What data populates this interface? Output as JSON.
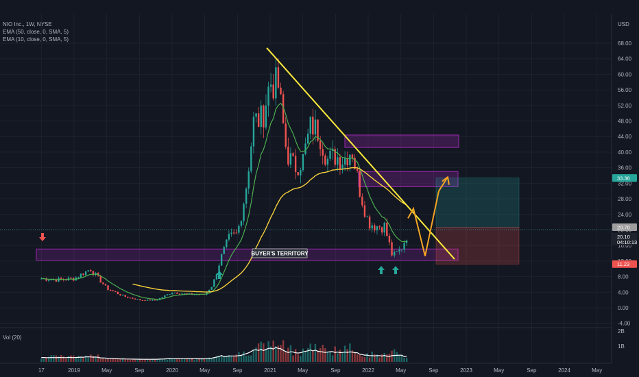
{
  "legend": {
    "symbol": "NIO Inc., 1W, NYSE",
    "ema1": "EMA (50, close, 0, SMA, 5)",
    "ema2": "EMA (10, close, 0, SMA, 5)"
  },
  "volume_label": "Vol (20)",
  "colors": {
    "background": "#131722",
    "trendline": "#ffeb3b",
    "zone": "#9c27b0",
    "arrow_up": "#26a69a",
    "arrow_down": "#ef5350",
    "projection": "#f5a623",
    "ema_slow": "#f5d03b",
    "ema_fast": "#4caf50",
    "profit": "#26a69a",
    "loss": "#ef5350"
  },
  "chart_data": {
    "type": "candlestick",
    "currency": "USD",
    "y_ticks": [
      -4,
      0,
      4,
      8,
      12,
      16,
      20,
      24,
      28,
      32,
      36,
      40,
      44,
      48,
      52,
      56,
      60,
      64,
      68
    ],
    "y_tick_labels": [
      "-4.00",
      "0.00",
      "4.00",
      "8.00",
      "12.00",
      "16.00",
      "20.00",
      "24.00",
      "28.00",
      "32.00",
      "36.00",
      "40.00",
      "44.00",
      "48.00",
      "52.00",
      "56.00",
      "60.00",
      "64.00",
      "68.00"
    ],
    "ylim": [
      -4.5,
      74
    ],
    "x_labels": [
      "17",
      "2019",
      "May",
      "Sep",
      "2020",
      "May",
      "Sep",
      "2021",
      "May",
      "Sep",
      "2022",
      "May",
      "Sep",
      "2023",
      "May",
      "Sep",
      "2024",
      "May"
    ],
    "x_label_dates": [
      "2018-09",
      "2019-01",
      "2019-05",
      "2019-09",
      "2020-01",
      "2020-05",
      "2020-09",
      "2021-01",
      "2021-05",
      "2021-09",
      "2022-01",
      "2022-05",
      "2022-09",
      "2023-01",
      "2023-05",
      "2023-09",
      "2024-01",
      "2024-05"
    ],
    "price_series": {
      "dates": [
        "2018-09",
        "2018-11",
        "2019-01",
        "2019-03",
        "2019-05",
        "2019-07",
        "2019-09",
        "2019-11",
        "2020-01",
        "2020-03",
        "2020-05",
        "2020-06",
        "2020-07",
        "2020-08",
        "2020-09",
        "2020-10",
        "2020-11",
        "2020-12",
        "2021-01",
        "2021-02",
        "2021-03",
        "2021-04",
        "2021-05",
        "2021-06",
        "2021-07",
        "2021-08",
        "2021-09",
        "2021-10",
        "2021-11",
        "2021-12",
        "2022-01",
        "2022-02",
        "2022-03",
        "2022-04",
        "2022-05",
        "2022-06"
      ],
      "close": [
        7.5,
        7.2,
        7.5,
        10.0,
        5.0,
        3.0,
        2.0,
        1.9,
        4.0,
        3.5,
        3.4,
        6.0,
        13.0,
        18.0,
        19.0,
        30.0,
        48.0,
        48.5,
        58.0,
        57.0,
        40.0,
        36.0,
        38.0,
        47.0,
        45.0,
        38.0,
        39.0,
        38.0,
        41.0,
        30.0,
        22.0,
        21.0,
        21.0,
        13.0,
        15.0,
        20.0
      ]
    },
    "last_price": "20.70",
    "current_price": "20.10",
    "countdown": "04:10:13",
    "target_price": "33.36",
    "stop_price": "11.23",
    "annotations": {
      "zone_label": "BUYER'S TERRITORY"
    },
    "volume_ticks": [
      "2B",
      "1B"
    ]
  }
}
